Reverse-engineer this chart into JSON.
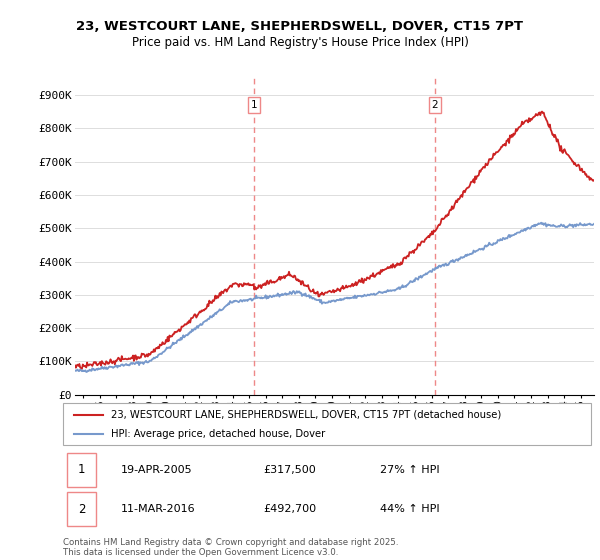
{
  "title": "23, WESTCOURT LANE, SHEPHERDSWELL, DOVER, CT15 7PT",
  "subtitle": "Price paid vs. HM Land Registry's House Price Index (HPI)",
  "red_label": "23, WESTCOURT LANE, SHEPHERDSWELL, DOVER, CT15 7PT (detached house)",
  "blue_label": "HPI: Average price, detached house, Dover",
  "transaction1_date": "19-APR-2005",
  "transaction1_price": "£317,500",
  "transaction1_hpi": "27% ↑ HPI",
  "transaction2_date": "11-MAR-2016",
  "transaction2_price": "£492,700",
  "transaction2_hpi": "44% ↑ HPI",
  "footer": "Contains HM Land Registry data © Crown copyright and database right 2025.\nThis data is licensed under the Open Government Licence v3.0.",
  "ylim": [
    0,
    950000
  ],
  "yticks": [
    0,
    100000,
    200000,
    300000,
    400000,
    500000,
    600000,
    700000,
    800000,
    900000
  ],
  "ytick_labels": [
    "£0",
    "£100K",
    "£200K",
    "£300K",
    "£400K",
    "£500K",
    "£600K",
    "£700K",
    "£800K",
    "£900K"
  ],
  "vline1_x": 2005.3,
  "vline2_x": 2016.2,
  "red_color": "#cc2222",
  "blue_color": "#7799cc",
  "vline_color": "#ee8888",
  "grid_color": "#dddddd",
  "xlim_left": 1994.5,
  "xlim_right": 2025.8
}
